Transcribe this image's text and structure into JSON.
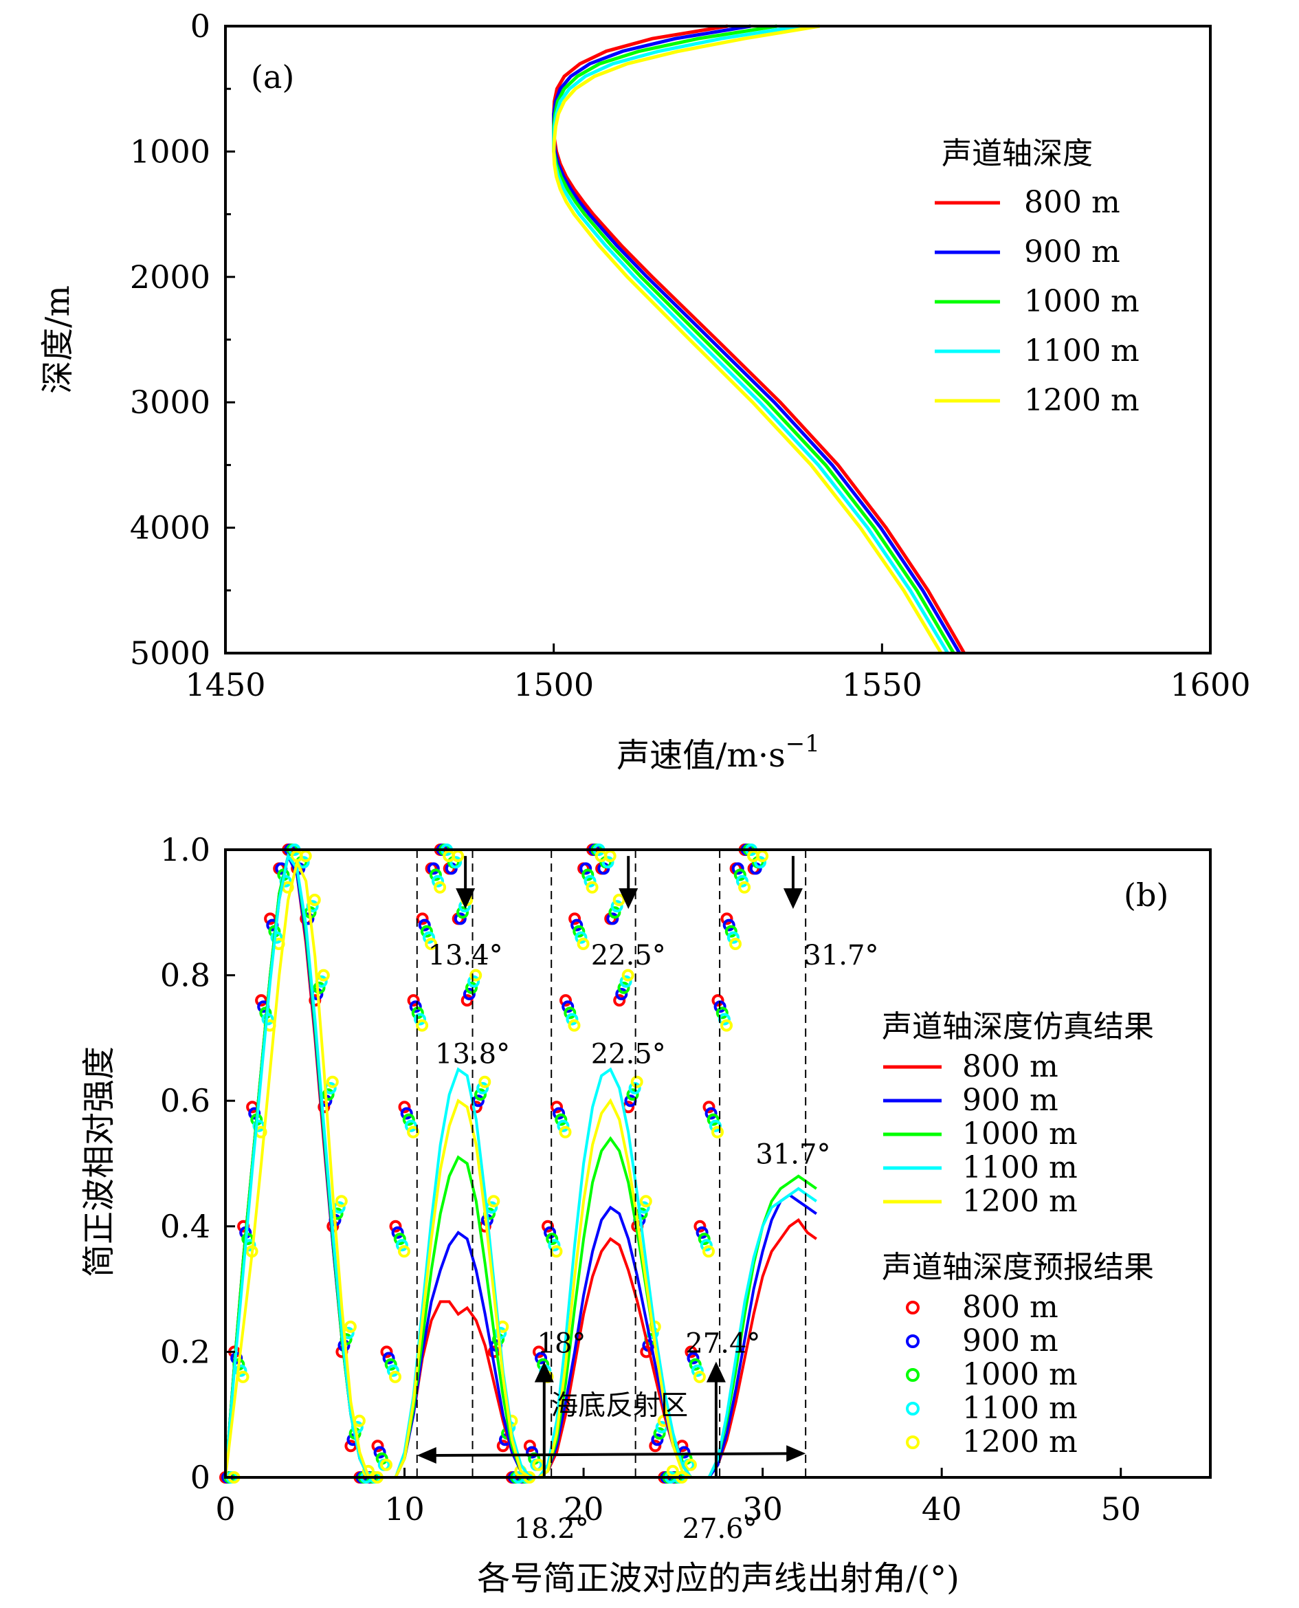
{
  "chart_data": [
    {
      "type": "line",
      "panel_label": "(a)",
      "xlabel": "声速值/m·s",
      "xlabel_sup": "−1",
      "ylabel": "深度/m",
      "xlim": [
        1450,
        1600
      ],
      "ylim": [
        0,
        5000
      ],
      "y_inverted": true,
      "xticks": [
        "1450",
        "1500",
        "1550",
        "1600"
      ],
      "yticks": [
        "0",
        "1000",
        "2000",
        "3000",
        "4000",
        "5000"
      ],
      "legend_title": "声道轴深度",
      "legend_position": "right",
      "x": [
        0,
        100,
        200,
        300,
        400,
        500,
        600,
        700,
        800,
        900,
        1000,
        1100,
        1200,
        1300,
        1400,
        1500,
        1750,
        2000,
        2500,
        3000,
        3500,
        4000,
        4500,
        5000
      ],
      "series": [
        {
          "name": "800 m",
          "color": "#ff0000",
          "values": [
            1526.5,
            1515.0,
            1508.0,
            1504.0,
            1501.6,
            1500.5,
            1500.1,
            1500.0,
            1500.0,
            1500.1,
            1500.4,
            1501.0,
            1501.9,
            1503.1,
            1504.5,
            1506.0,
            1510.3,
            1515.0,
            1524.8,
            1534.5,
            1543.3,
            1550.6,
            1557.0,
            1562.5
          ]
        },
        {
          "name": "900 m",
          "color": "#0000ff",
          "values": [
            1530.0,
            1518.5,
            1510.5,
            1505.5,
            1502.6,
            1501.0,
            1500.3,
            1500.0,
            1500.0,
            1500.0,
            1500.2,
            1500.7,
            1501.5,
            1502.6,
            1503.9,
            1505.4,
            1509.6,
            1514.2,
            1523.9,
            1533.6,
            1542.4,
            1549.8,
            1556.2,
            1561.8
          ]
        },
        {
          "name": "1000 m",
          "color": "#00ff00",
          "values": [
            1534.0,
            1522.0,
            1513.0,
            1507.0,
            1503.6,
            1501.6,
            1500.6,
            1500.2,
            1500.0,
            1500.0,
            1500.0,
            1500.4,
            1501.1,
            1502.1,
            1503.3,
            1504.7,
            1508.8,
            1513.3,
            1522.9,
            1532.5,
            1541.4,
            1548.8,
            1555.3,
            1560.9
          ]
        },
        {
          "name": "1100 m",
          "color": "#00ffff",
          "values": [
            1537.5,
            1525.5,
            1516.0,
            1509.0,
            1504.8,
            1502.4,
            1501.0,
            1500.4,
            1500.1,
            1500.0,
            1500.0,
            1500.2,
            1500.7,
            1501.5,
            1502.6,
            1503.9,
            1507.9,
            1512.3,
            1521.8,
            1531.4,
            1540.3,
            1547.8,
            1554.3,
            1560.0
          ]
        },
        {
          "name": "1200 m",
          "color": "#ffff00",
          "values": [
            1540.5,
            1529.0,
            1519.0,
            1511.2,
            1506.2,
            1503.3,
            1501.6,
            1500.7,
            1500.3,
            1500.1,
            1500.0,
            1500.1,
            1500.4,
            1501.0,
            1501.9,
            1503.1,
            1506.9,
            1511.2,
            1520.7,
            1530.3,
            1539.2,
            1546.7,
            1553.3,
            1559.0
          ]
        }
      ]
    },
    {
      "type": "line",
      "panel_label": "(b)",
      "xlabel": "各号简正波对应的声线出射角/(°)",
      "ylabel": "简正波相对强度",
      "xlim": [
        0,
        55
      ],
      "ylim": [
        0,
        1.0
      ],
      "xticks": [
        "0",
        "10",
        "20",
        "30",
        "40",
        "50"
      ],
      "yticks": [
        "0",
        "0.2",
        "0.4",
        "0.6",
        "0.8",
        "1.0"
      ],
      "legend_position": "right",
      "legend_sim_title": "声道轴深度仿真结果",
      "legend_pred_title": "声道轴深度预报结果",
      "x": [
        0,
        0.5,
        1,
        1.5,
        2,
        2.5,
        3,
        3.5,
        4,
        4.5,
        5,
        5.5,
        6,
        6.5,
        7,
        7.5,
        8,
        8.5,
        9,
        9.5,
        10,
        10.5,
        11,
        11.5,
        12,
        12.5,
        13,
        13.5,
        14,
        14.5,
        15,
        15.5,
        16,
        16.5,
        17,
        17.5,
        18,
        18.5,
        19,
        19.5,
        20,
        20.5,
        21,
        21.5,
        22,
        22.5,
        23,
        23.5,
        24,
        24.5,
        25,
        25.5,
        26,
        26.5,
        27,
        27.5,
        28,
        28.5,
        29,
        29.5,
        30,
        30.5,
        31,
        31.5,
        32,
        32.5,
        33
      ],
      "simulation": [
        {
          "name": "800 m",
          "color": "#ff0000",
          "values": [
            0,
            0.18,
            0.35,
            0.5,
            0.65,
            0.8,
            0.92,
            0.99,
            0.96,
            0.85,
            0.7,
            0.53,
            0.37,
            0.22,
            0.1,
            0.03,
            0.0,
            0.0,
            0.0,
            0.0,
            0.03,
            0.1,
            0.19,
            0.25,
            0.28,
            0.28,
            0.26,
            0.27,
            0.25,
            0.21,
            0.15,
            0.09,
            0.04,
            0.01,
            0.0,
            0.0,
            0.01,
            0.04,
            0.1,
            0.18,
            0.26,
            0.32,
            0.36,
            0.38,
            0.37,
            0.33,
            0.28,
            0.22,
            0.16,
            0.1,
            0.05,
            0.02,
            0.0,
            0.0,
            0.0,
            0.02,
            0.06,
            0.12,
            0.19,
            0.26,
            0.32,
            0.36,
            0.38,
            0.4,
            0.41,
            0.39,
            0.38
          ]
        },
        {
          "name": "900 m",
          "color": "#0000ff",
          "values": [
            0,
            0.18,
            0.35,
            0.5,
            0.65,
            0.8,
            0.93,
            0.99,
            0.96,
            0.86,
            0.71,
            0.54,
            0.37,
            0.22,
            0.1,
            0.03,
            0.0,
            0.0,
            0.0,
            0.0,
            0.03,
            0.1,
            0.2,
            0.28,
            0.33,
            0.37,
            0.39,
            0.38,
            0.33,
            0.26,
            0.18,
            0.1,
            0.04,
            0.01,
            0.0,
            0.0,
            0.01,
            0.05,
            0.12,
            0.2,
            0.29,
            0.36,
            0.41,
            0.43,
            0.42,
            0.38,
            0.32,
            0.25,
            0.18,
            0.11,
            0.05,
            0.02,
            0.0,
            0.0,
            0.0,
            0.02,
            0.07,
            0.14,
            0.22,
            0.3,
            0.36,
            0.41,
            0.44,
            0.45,
            0.44,
            0.43,
            0.42
          ]
        },
        {
          "name": "1000 m",
          "color": "#00ff00",
          "values": [
            0,
            0.18,
            0.35,
            0.5,
            0.65,
            0.8,
            0.93,
            0.99,
            0.97,
            0.87,
            0.72,
            0.55,
            0.38,
            0.22,
            0.1,
            0.03,
            0.0,
            0.0,
            0.0,
            0.0,
            0.03,
            0.11,
            0.22,
            0.33,
            0.42,
            0.48,
            0.51,
            0.5,
            0.44,
            0.34,
            0.23,
            0.13,
            0.05,
            0.01,
            0.0,
            0.0,
            0.01,
            0.06,
            0.15,
            0.27,
            0.38,
            0.47,
            0.52,
            0.54,
            0.52,
            0.47,
            0.39,
            0.3,
            0.21,
            0.13,
            0.06,
            0.02,
            0.0,
            0.0,
            0.0,
            0.03,
            0.09,
            0.17,
            0.26,
            0.34,
            0.4,
            0.44,
            0.46,
            0.47,
            0.48,
            0.47,
            0.46
          ]
        },
        {
          "name": "1100 m",
          "color": "#00ffff",
          "values": [
            0,
            0.17,
            0.33,
            0.49,
            0.64,
            0.79,
            0.92,
            0.99,
            0.97,
            0.88,
            0.73,
            0.56,
            0.39,
            0.23,
            0.1,
            0.03,
            0.0,
            0.0,
            0.0,
            0.0,
            0.04,
            0.13,
            0.27,
            0.41,
            0.53,
            0.61,
            0.65,
            0.64,
            0.57,
            0.45,
            0.31,
            0.17,
            0.07,
            0.02,
            0.0,
            0.0,
            0.02,
            0.09,
            0.22,
            0.37,
            0.5,
            0.59,
            0.64,
            0.65,
            0.62,
            0.55,
            0.45,
            0.34,
            0.23,
            0.14,
            0.07,
            0.02,
            0.0,
            0.0,
            0.0,
            0.03,
            0.1,
            0.19,
            0.28,
            0.35,
            0.4,
            0.43,
            0.44,
            0.45,
            0.46,
            0.45,
            0.44
          ]
        },
        {
          "name": "1200 m",
          "color": "#ffff00",
          "values": [
            0,
            0.12,
            0.24,
            0.36,
            0.5,
            0.65,
            0.8,
            0.92,
            0.98,
            0.95,
            0.83,
            0.65,
            0.45,
            0.27,
            0.12,
            0.04,
            0.0,
            0.0,
            0.0,
            0.0,
            0.03,
            0.12,
            0.25,
            0.38,
            0.49,
            0.56,
            0.6,
            0.59,
            0.53,
            0.42,
            0.29,
            0.16,
            0.06,
            0.01,
            0.0,
            0.0,
            0.01,
            0.07,
            0.18,
            0.32,
            0.44,
            0.53,
            0.58,
            0.6,
            0.57,
            0.5,
            0.41,
            0.31,
            0.21,
            0.12,
            0.05,
            0.01,
            0.0,
            0.0,
            0.0,
            0.0,
            0.0,
            0.0,
            0.0,
            0.0,
            0.0,
            0.0,
            0.0,
            0.0,
            0.0,
            0.0,
            0.0
          ]
        }
      ],
      "prediction": [
        {
          "name": "800 m",
          "color": "#ff0000",
          "values": [
            0,
            0.2,
            0.4,
            0.59,
            0.76,
            0.89,
            0.97,
            1.0,
            0.97,
            0.89,
            0.76,
            0.59,
            0.4,
            0.2,
            0.05,
            0.0,
            0.0,
            0.05,
            0.2,
            0.4,
            0.59,
            0.76,
            0.89,
            0.97,
            1.0,
            0.97,
            0.89,
            0.76,
            0.59,
            0.4,
            0.2,
            0.05,
            0.0,
            0.0,
            0.05,
            0.2,
            0.4,
            0.59,
            0.76,
            0.89,
            0.97,
            1.0,
            0.97,
            0.89,
            0.76,
            0.59,
            0.4,
            0.2,
            0.05,
            0.0,
            0.0,
            0.05,
            0.2,
            0.4,
            0.59,
            0.76,
            0.89,
            0.97,
            1.0,
            0.97,
            null,
            null,
            null,
            null,
            null,
            null,
            null
          ]
        },
        {
          "name": "900 m",
          "color": "#0000ff",
          "values": [
            0,
            0.19,
            0.39,
            0.58,
            0.75,
            0.88,
            0.97,
            1.0,
            0.97,
            0.89,
            0.77,
            0.6,
            0.41,
            0.21,
            0.06,
            0.0,
            0.0,
            0.04,
            0.19,
            0.39,
            0.58,
            0.75,
            0.88,
            0.97,
            1.0,
            0.97,
            0.89,
            0.77,
            0.6,
            0.41,
            0.21,
            0.06,
            0.0,
            0.0,
            0.04,
            0.19,
            0.39,
            0.58,
            0.75,
            0.88,
            0.97,
            1.0,
            0.97,
            0.89,
            0.77,
            0.6,
            0.41,
            0.21,
            0.06,
            0.0,
            0.0,
            0.04,
            0.19,
            0.39,
            0.58,
            0.75,
            0.88,
            0.97,
            1.0,
            0.97,
            null,
            null,
            null,
            null,
            null,
            null,
            null
          ]
        },
        {
          "name": "1000 m",
          "color": "#00ff00",
          "values": [
            0,
            0.18,
            0.38,
            0.57,
            0.74,
            0.87,
            0.96,
            1.0,
            0.98,
            0.9,
            0.78,
            0.61,
            0.42,
            0.22,
            0.07,
            0.0,
            0.0,
            0.03,
            0.18,
            0.38,
            0.57,
            0.74,
            0.87,
            0.96,
            1.0,
            0.98,
            0.9,
            0.78,
            0.61,
            0.42,
            0.22,
            0.07,
            0.0,
            0.0,
            0.03,
            0.18,
            0.38,
            0.57,
            0.74,
            0.87,
            0.96,
            1.0,
            0.98,
            0.9,
            0.78,
            0.61,
            0.42,
            0.22,
            0.07,
            0.0,
            0.0,
            0.03,
            0.18,
            0.38,
            0.57,
            0.74,
            0.87,
            0.96,
            1.0,
            0.98,
            null,
            null,
            null,
            null,
            null,
            null,
            null
          ]
        },
        {
          "name": "1100 m",
          "color": "#00ffff",
          "values": [
            0,
            0.17,
            0.37,
            0.56,
            0.73,
            0.86,
            0.95,
            1.0,
            0.98,
            0.91,
            0.79,
            0.62,
            0.43,
            0.23,
            0.08,
            0.0,
            0.0,
            0.02,
            0.17,
            0.37,
            0.56,
            0.73,
            0.86,
            0.95,
            1.0,
            0.98,
            0.91,
            0.79,
            0.62,
            0.43,
            0.23,
            0.08,
            0.0,
            0.0,
            0.02,
            0.17,
            0.37,
            0.56,
            0.73,
            0.86,
            0.95,
            1.0,
            0.98,
            0.91,
            0.79,
            0.62,
            0.43,
            0.23,
            0.08,
            0.0,
            0.0,
            0.02,
            0.17,
            0.37,
            0.56,
            0.73,
            0.86,
            0.95,
            1.0,
            0.98,
            null,
            null,
            null,
            null,
            null,
            null,
            null
          ]
        },
        {
          "name": "1200 m",
          "color": "#ffff00",
          "values": [
            0,
            0.16,
            0.36,
            0.55,
            0.72,
            0.85,
            0.94,
            0.99,
            0.99,
            0.92,
            0.8,
            0.63,
            0.44,
            0.24,
            0.09,
            0.01,
            0.0,
            0.02,
            0.16,
            0.36,
            0.55,
            0.72,
            0.85,
            0.94,
            0.99,
            0.99,
            0.92,
            0.8,
            0.63,
            0.44,
            0.24,
            0.09,
            0.01,
            0.0,
            0.02,
            0.16,
            0.36,
            0.55,
            0.72,
            0.85,
            0.94,
            0.99,
            0.99,
            0.92,
            0.8,
            0.63,
            0.44,
            0.24,
            0.09,
            0.01,
            0.0,
            0.02,
            0.16,
            0.36,
            0.55,
            0.72,
            0.85,
            0.94,
            0.99,
            0.99,
            null,
            null,
            null,
            null,
            null,
            null,
            null
          ]
        }
      ],
      "vlines_x": [
        10.7,
        18.2,
        22.9,
        27.6,
        32.4,
        13.8
      ],
      "annotations": [
        {
          "text": "13.4°",
          "x": 13.4,
          "y": 0.85
        },
        {
          "text": "22.5°",
          "x": 22.5,
          "y": 0.85
        },
        {
          "text": "31.7°",
          "x": 31.7,
          "y": 0.85
        },
        {
          "text": "13.8°",
          "x": 13.8,
          "y": 0.66
        },
        {
          "text": "22.5°",
          "x": 22.5,
          "y": 0.66
        },
        {
          "text": "31.7°",
          "x": 31.7,
          "y": 0.5
        },
        {
          "text": "18°",
          "x": 18.0,
          "y": 0.21
        },
        {
          "text": "27.4°",
          "x": 27.4,
          "y": 0.21
        },
        {
          "text": "海底反射区",
          "x": 22.0,
          "y": 0.1
        },
        {
          "text": "18.2°",
          "x": 18.2,
          "y": -0.05
        },
        {
          "text": "27.6°",
          "x": 27.6,
          "y": -0.05
        }
      ]
    }
  ]
}
